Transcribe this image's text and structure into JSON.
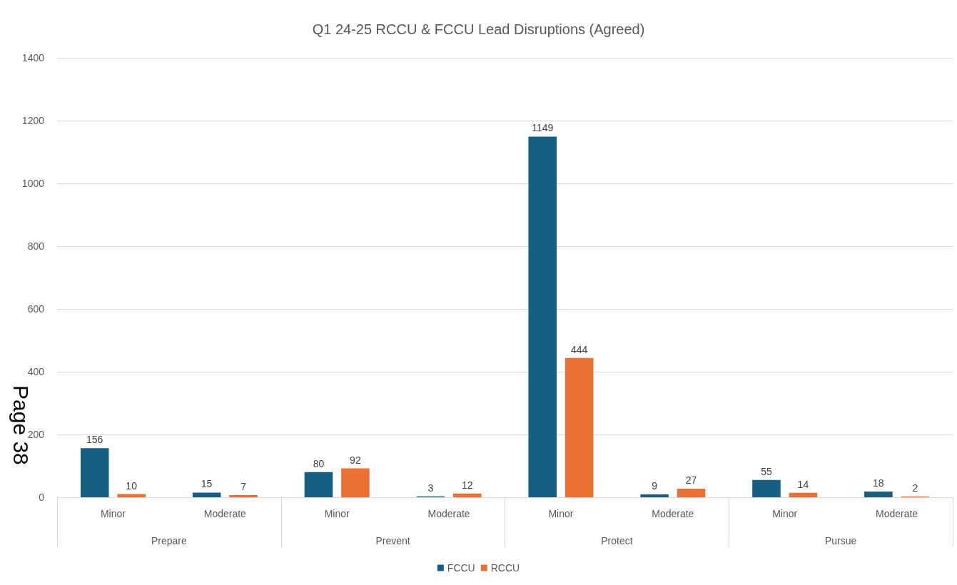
{
  "chart_data": {
    "type": "bar",
    "title": "Q1 24-25 RCCU & FCCU Lead Disruptions (Agreed)",
    "categories": [
      "Minor",
      "Moderate",
      "Minor",
      "Moderate",
      "Minor",
      "Moderate",
      "Minor",
      "Moderate"
    ],
    "series": [
      {
        "name": "FCCU",
        "color": "#156082",
        "values": [
          156,
          15,
          80,
          3,
          1149,
          9,
          55,
          18
        ]
      },
      {
        "name": "RCCU",
        "color": "#e97132",
        "values": [
          10,
          7,
          92,
          12,
          444,
          27,
          14,
          2
        ]
      }
    ],
    "ylim": [
      0,
      1400
    ],
    "yticks": [
      0,
      200,
      400,
      600,
      800,
      1000,
      1200,
      1400
    ],
    "grid": "y",
    "legend": "bottom",
    "data_labels": true,
    "annotations": [
      "Prepare",
      "Prevent",
      "Protect",
      "Pursue",
      "Page 38"
    ]
  }
}
